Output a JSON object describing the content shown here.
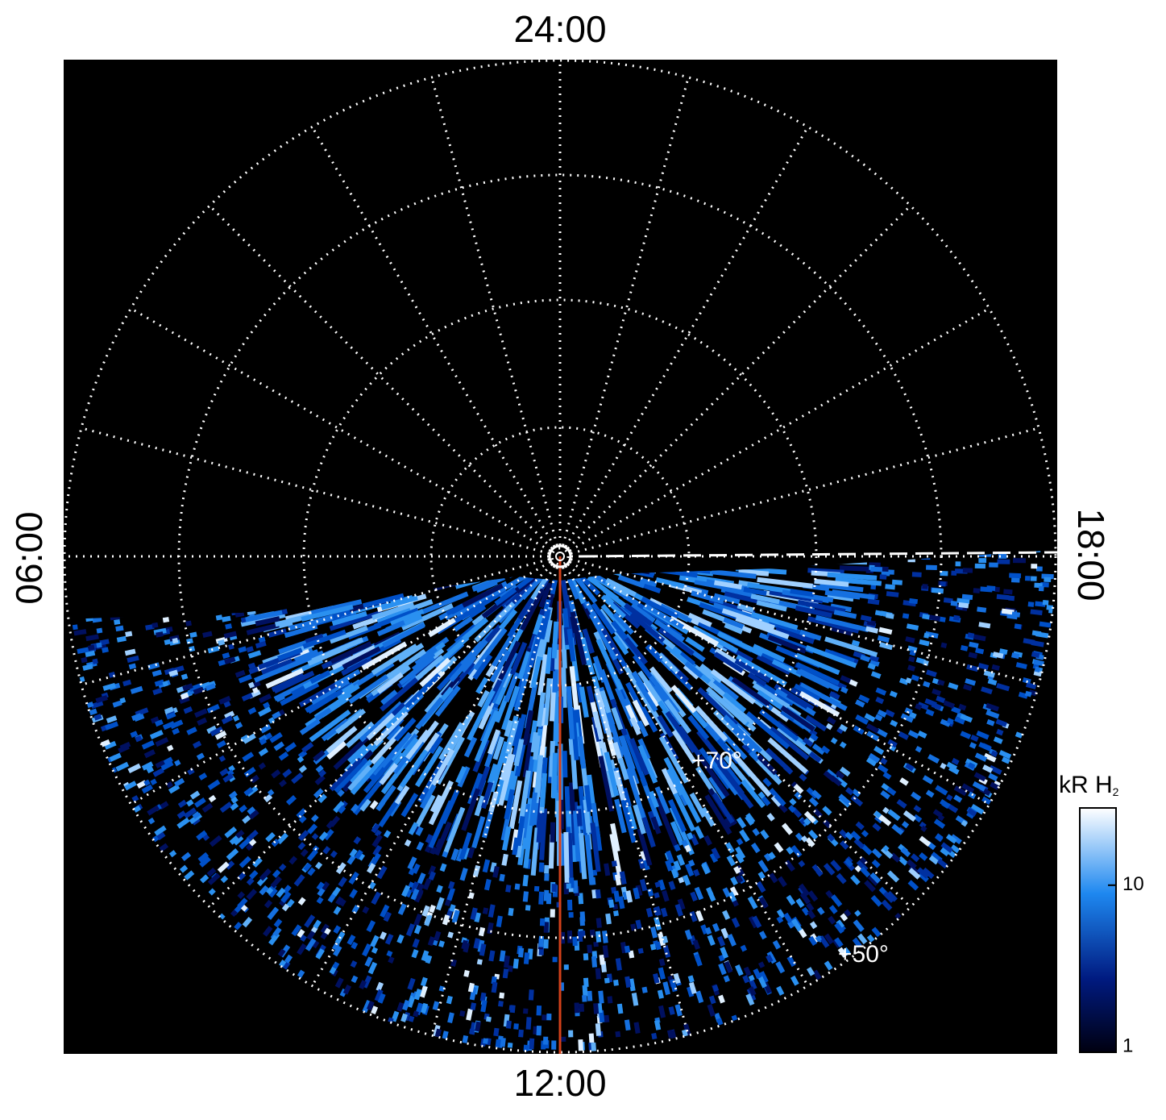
{
  "polar_map": {
    "top_label": "24:00",
    "bottom_label": "12:00",
    "left_label": "06:00",
    "right_label": "18:00",
    "latitude_labels": [
      "+70°",
      "+50°"
    ]
  },
  "colorbar": {
    "label": "kR H",
    "label_subscript": "2",
    "scale": "log",
    "lim": [
      1,
      29
    ],
    "ticks": [
      1,
      10
    ]
  }
}
